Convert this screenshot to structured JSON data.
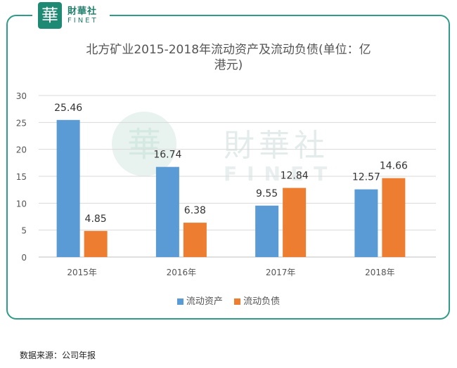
{
  "logo": {
    "seal_char": "華",
    "name_cn": "財華社",
    "name_en": "FINET"
  },
  "watermark": {
    "seal_char": "華",
    "name_cn": "財華社",
    "name_en": "FINET"
  },
  "source": "数据来源：公司年报",
  "chart_data": {
    "type": "bar",
    "title": "北方矿业2015-2018年流动资产及流动负债(单位：亿港元)",
    "title_lines": [
      "北方矿业2015-2018年流动资产及流动负债(单位：亿",
      "港元)"
    ],
    "categories": [
      "2015年",
      "2016年",
      "2017年",
      "2018年"
    ],
    "series": [
      {
        "name": "流动资产",
        "values": [
          25.46,
          16.74,
          9.55,
          12.57
        ],
        "labels": [
          "25.46",
          "16.74",
          "9.55",
          "12.57"
        ],
        "color": "#5b9bd5"
      },
      {
        "name": "流动负债",
        "values": [
          4.85,
          6.38,
          12.84,
          14.66
        ],
        "labels": [
          "4.85",
          "6.38",
          "12.84",
          "14.66"
        ],
        "color": "#ed7d31"
      }
    ],
    "ylim": [
      0,
      30
    ],
    "yticks": [
      0,
      5,
      10,
      15,
      20,
      25,
      30
    ],
    "xlabel": "",
    "ylabel": "",
    "grid": true,
    "legend": "bottom"
  }
}
